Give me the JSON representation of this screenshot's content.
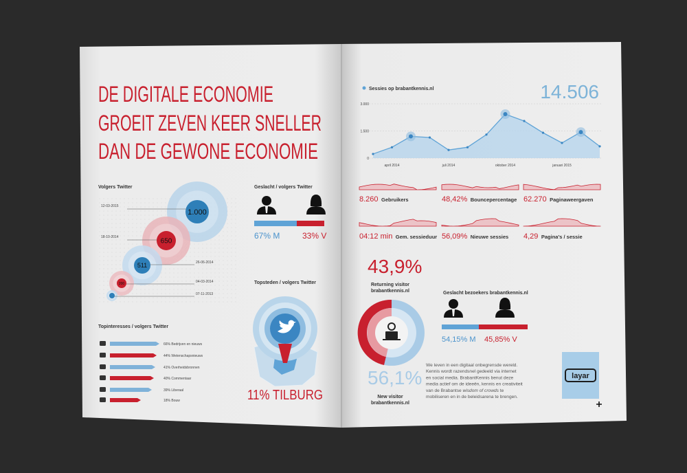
{
  "left_page": {
    "headline": [
      "DE DIGITALE ECONOMIE",
      "GROEIT ZEVEN KEER SNELLER",
      "DAN DE GEWONE ECONOMIE"
    ],
    "twitter_followers": {
      "title": "Volgers Twitter",
      "points": [
        {
          "date": "12-03-2015",
          "value": "1.000"
        },
        {
          "date": "18-10-2014",
          "value": "650"
        },
        {
          "date": "26-06-2014",
          "value": "511"
        },
        {
          "date": "04-03-2014",
          "value": "200"
        },
        {
          "date": "07-11-2013"
        }
      ]
    },
    "gender": {
      "title": "Geslacht / volgers Twitter",
      "male": "67% M",
      "female": "33% V"
    },
    "interests": {
      "title": "Topinteresses / volgers Twitter",
      "items": [
        "66% Bedrijven en nieuws",
        "44% Wetenschapsnieuws",
        "41% Overheidsbronnen",
        "40% Commentaar",
        "39% Liberaal",
        "18% Bouw"
      ]
    },
    "top_cities": {
      "title": "Topsteden / volgers Twitter",
      "label": "11% TILBURG"
    }
  },
  "right_page": {
    "sessions_chart": {
      "legend": "Sessies op brabantkennis.nl",
      "total": "14.506",
      "ylim": [
        0,
        3000
      ],
      "yticks": [
        {
          "value": 3000,
          "label": "3.000"
        },
        {
          "value": 1500,
          "label": "1.500"
        },
        0
      ],
      "xticks": [
        "april 2014",
        "juli 2014",
        "oktober 2014",
        "januari 2015"
      ],
      "values": [
        230,
        600,
        1200,
        1140,
        450,
        600,
        1300,
        2430,
        2050,
        1400,
        840,
        1440,
        650
      ]
    },
    "kpis": [
      {
        "value": "8.260",
        "label": "Gebruikers"
      },
      {
        "value": "48,42%",
        "label": "Bouncepercentage"
      },
      {
        "value": "62.270",
        "label": "Paginaweergaven"
      },
      {
        "value": "04:12 min",
        "label": "Gem. sessieduur"
      },
      {
        "value": "56,09%",
        "label": "Nieuwe sessies"
      },
      {
        "value": "4,29",
        "label": "Pagina's / sessie"
      }
    ],
    "visitors": {
      "returning_pct": "43,9%",
      "returning_label": [
        "Returning visitor",
        "brabantkennis.nl"
      ],
      "new_pct": "56,1%",
      "new_label": [
        "New visitor",
        "brabantkennis.nl"
      ]
    },
    "visitor_gender": {
      "title": "Geslacht bezoekers brabantkennis.nl",
      "male": "54,15% M",
      "female": "45,85% V"
    },
    "paragraph": [
      [
        "We leven in een digitaal onbegrensde wereld."
      ],
      [
        "Kennis wordt razendsnel gedeeld via internet"
      ],
      [
        "en social media. BrabantKennis benut deze"
      ],
      [
        "media actief om de ideeën, kennis en creativiteit"
      ],
      [
        "van de Brabantse ",
        "wisdom of crowds",
        " te"
      ],
      [
        "mobiliseren en in de beleidsarena te brengen."
      ]
    ],
    "logo": "layar"
  }
}
